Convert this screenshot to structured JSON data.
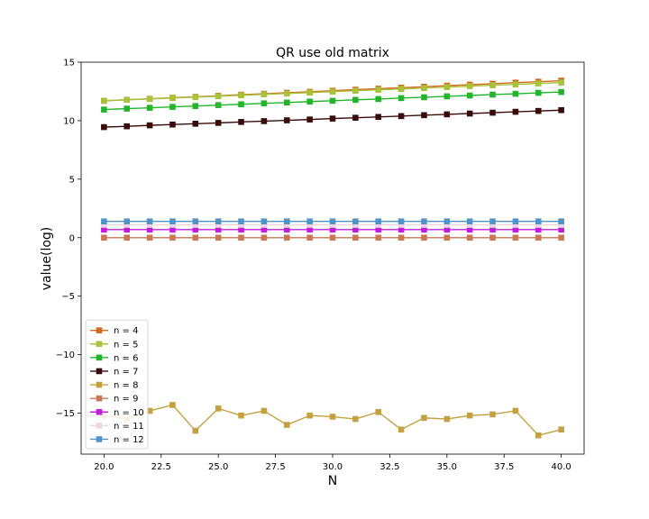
{
  "chart_data": {
    "type": "line",
    "title": "QR use old matrix",
    "xlabel": "N",
    "ylabel": "value(log)",
    "xlim": [
      19.0,
      41.0
    ],
    "ylim": [
      -18.5,
      15.0
    ],
    "xticks": [
      20.0,
      22.5,
      25.0,
      27.5,
      30.0,
      32.5,
      35.0,
      37.5,
      40.0
    ],
    "xtick_labels": [
      "20.0",
      "22.5",
      "25.0",
      "27.5",
      "30.0",
      "32.5",
      "35.0",
      "37.5",
      "40.0"
    ],
    "yticks": [
      15,
      10,
      5,
      0,
      -5,
      -10,
      -15
    ],
    "ytick_labels": [
      "15",
      "10",
      "5",
      "0",
      "−5",
      "−10",
      "−15"
    ],
    "grid": false,
    "legend_position": "lower-left",
    "x": [
      20,
      21,
      22,
      23,
      24,
      25,
      26,
      27,
      28,
      29,
      30,
      31,
      32,
      33,
      34,
      35,
      36,
      37,
      38,
      39,
      40
    ],
    "series": [
      {
        "name": "n = 4",
        "color": "#d2691e",
        "marker": "square",
        "values": [
          11.7,
          11.79,
          11.87,
          11.96,
          12.04,
          12.13,
          12.22,
          12.3,
          12.39,
          12.47,
          12.56,
          12.65,
          12.73,
          12.82,
          12.9,
          12.99,
          13.08,
          13.16,
          13.25,
          13.33,
          13.42
        ]
      },
      {
        "name": "n = 5",
        "color": "#a8c23a",
        "marker": "square",
        "values": [
          11.7,
          11.78,
          11.86,
          11.93,
          12.01,
          12.09,
          12.17,
          12.25,
          12.32,
          12.4,
          12.48,
          12.56,
          12.64,
          12.71,
          12.79,
          12.87,
          12.95,
          13.03,
          13.1,
          13.18,
          13.26
        ]
      },
      {
        "name": "n = 6",
        "color": "#22b52b",
        "marker": "square",
        "values": [
          10.95,
          11.03,
          11.1,
          11.18,
          11.25,
          11.33,
          11.4,
          11.48,
          11.55,
          11.63,
          11.7,
          11.78,
          11.85,
          11.93,
          12.0,
          12.08,
          12.15,
          12.23,
          12.3,
          12.38,
          12.45
        ]
      },
      {
        "name": "n = 7",
        "color": "#3a0b0b",
        "marker": "square",
        "values": [
          9.45,
          9.52,
          9.6,
          9.67,
          9.74,
          9.81,
          9.89,
          9.96,
          10.03,
          10.1,
          10.18,
          10.25,
          10.32,
          10.39,
          10.47,
          10.54,
          10.61,
          10.68,
          10.76,
          10.83,
          10.9
        ]
      },
      {
        "name": "n = 8",
        "color": "#c4a040",
        "marker": "square",
        "values": [
          -15.2,
          -15.5,
          -14.8,
          -14.3,
          -16.5,
          -14.6,
          -15.2,
          -14.8,
          -16.0,
          -15.2,
          -15.3,
          -15.5,
          -14.9,
          -16.4,
          -15.4,
          -15.5,
          -15.2,
          -15.1,
          -14.8,
          -16.9,
          -16.4
        ]
      },
      {
        "name": "n = 9",
        "color": "#c87855",
        "marker": "square",
        "values": [
          0,
          0,
          0,
          0,
          0,
          0,
          0,
          0,
          0,
          0,
          0,
          0,
          0,
          0,
          0,
          0,
          0,
          0,
          0,
          0,
          0
        ]
      },
      {
        "name": "n = 10",
        "color": "#c21bdb",
        "marker": "square",
        "values": [
          0.69,
          0.69,
          0.69,
          0.69,
          0.69,
          0.69,
          0.69,
          0.69,
          0.69,
          0.69,
          0.69,
          0.69,
          0.69,
          0.69,
          0.69,
          0.69,
          0.69,
          0.69,
          0.69,
          0.69,
          0.69
        ]
      },
      {
        "name": "n = 11",
        "color": "#f0d6e0",
        "marker": "square",
        "values": [
          1.1,
          1.1,
          1.1,
          1.1,
          1.1,
          1.1,
          1.1,
          1.1,
          1.1,
          1.1,
          1.1,
          1.1,
          1.1,
          1.1,
          1.1,
          1.1,
          1.1,
          1.1,
          1.1,
          1.1,
          1.1
        ]
      },
      {
        "name": "n = 12",
        "color": "#4f93c9",
        "marker": "square",
        "values": [
          1.39,
          1.39,
          1.39,
          1.39,
          1.39,
          1.39,
          1.39,
          1.39,
          1.39,
          1.39,
          1.39,
          1.39,
          1.39,
          1.39,
          1.39,
          1.39,
          1.39,
          1.39,
          1.39,
          1.39,
          1.39
        ]
      }
    ]
  }
}
